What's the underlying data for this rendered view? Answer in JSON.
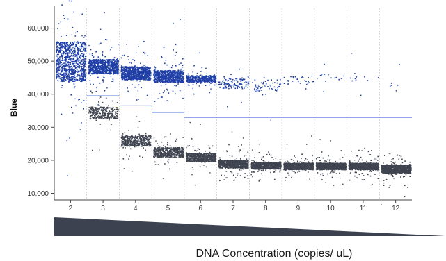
{
  "chart_data": {
    "type": "scatter",
    "title": "",
    "ylabel": "Blue",
    "xlabel": "DNA Concentration (copies/ uL)",
    "ylim": [
      8000,
      66000
    ],
    "y_ticks": [
      "10,000",
      "20,000",
      "30,000",
      "40,000",
      "50,000",
      "60,000"
    ],
    "y_tick_values": [
      10000,
      20000,
      30000,
      40000,
      50000,
      60000
    ],
    "categories": [
      "2",
      "3",
      "4",
      "5",
      "6",
      "7",
      "8",
      "9",
      "10",
      "11",
      "12"
    ],
    "grid": "vertical",
    "series": [
      {
        "role": "positive",
        "color": "#1f3fa6",
        "cluster_centers": [
          50000,
          48500,
          46500,
          45500,
          44800,
          43500,
          42800,
          44500,
          45000,
          45500,
          44000
        ],
        "cluster_spread": [
          6000,
          2200,
          2000,
          1800,
          1000,
          1700,
          1800,
          1400,
          1300,
          1300,
          1500
        ],
        "density": [
          1.0,
          0.9,
          0.85,
          0.75,
          0.45,
          0.12,
          0.06,
          0.03,
          0.015,
          0.01,
          0.004
        ]
      },
      {
        "role": "negative",
        "color": "#3f4450",
        "cluster_centers": [
          null,
          34500,
          26000,
          22500,
          21000,
          19000,
          18500,
          18300,
          18300,
          18300,
          17500
        ],
        "cluster_spread": [
          0,
          1800,
          1600,
          1500,
          1300,
          1200,
          1000,
          1000,
          1000,
          1000,
          1200
        ],
        "density": [
          0,
          0.3,
          0.45,
          0.55,
          0.7,
          0.8,
          0.9,
          0.95,
          0.97,
          0.98,
          1.0
        ]
      }
    ],
    "thresholds": [
      {
        "from": "3",
        "to": "4",
        "y": 39500
      },
      {
        "from": "4",
        "to": "5",
        "y": 36500
      },
      {
        "from": "5",
        "to": "6",
        "y": 34500
      },
      {
        "from": "6",
        "to": "12",
        "y": 33000
      }
    ],
    "threshold_color": "#2a4bd7",
    "gradient_bar_color": "#3c4250"
  }
}
